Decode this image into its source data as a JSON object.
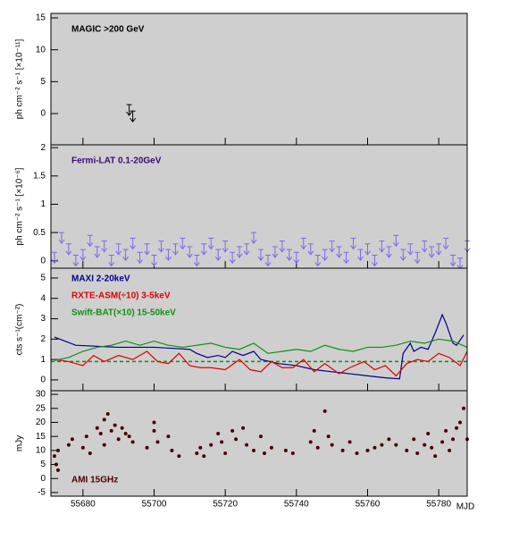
{
  "chart_data": [
    {
      "type": "scatter",
      "upper_limit": true,
      "title": "MAGIC >200 GeV",
      "title_color": "#000000",
      "ylabel": "ph cm⁻² s⁻¹ [×10⁻¹¹]",
      "color": "#000000",
      "x": [
        55693,
        55694
      ],
      "values": [
        1.4,
        0.4
      ],
      "xlim": [
        55671,
        55788
      ],
      "ylim": [
        -4.9,
        15.7
      ],
      "yticks": [
        0,
        5,
        10,
        15
      ]
    },
    {
      "type": "scatter",
      "upper_limit": true,
      "title": "Fermi-LAT 0.1-20GeV",
      "title_color": "#3a0a7a",
      "ylabel": "ph cm⁻² s⁻¹ [×10⁻⁶]",
      "color": "#7b68ee",
      "x": [
        55672,
        55674,
        55676,
        55678,
        55680,
        55682,
        55684,
        55686,
        55688,
        55690,
        55692,
        55694,
        55696,
        55698,
        55700,
        55702,
        55704,
        55706,
        55708,
        55710,
        55712,
        55714,
        55716,
        55718,
        55720,
        55722,
        55724,
        55726,
        55728,
        55730,
        55732,
        55734,
        55736,
        55738,
        55740,
        55742,
        55744,
        55746,
        55748,
        55750,
        55752,
        55754,
        55756,
        55758,
        55760,
        55762,
        55764,
        55766,
        55768,
        55770,
        55772,
        55774,
        55776,
        55778,
        55780,
        55782,
        55784,
        55786,
        55788
      ],
      "values": [
        0.15,
        0.5,
        0.3,
        0.1,
        0.2,
        0.45,
        0.25,
        0.35,
        0.1,
        0.3,
        0.2,
        0.4,
        0.15,
        0.3,
        0.1,
        0.35,
        0.2,
        0.3,
        0.4,
        0.25,
        0.1,
        0.3,
        0.4,
        0.2,
        0.35,
        0.15,
        0.25,
        0.3,
        0.5,
        0.2,
        0.1,
        0.25,
        0.35,
        0.2,
        0.15,
        0.4,
        0.3,
        0.1,
        0.2,
        0.35,
        0.25,
        0.15,
        0.4,
        0.2,
        0.3,
        0.1,
        0.35,
        0.25,
        0.45,
        0.2,
        0.3,
        0.15,
        0.35,
        0.25,
        0.3,
        0.4,
        0.1,
        0.05,
        0.35
      ],
      "xlim": [
        55671,
        55788
      ],
      "ylim": [
        -0.13,
        2.05
      ],
      "yticks": [
        0,
        0.5,
        1,
        1.5,
        2
      ]
    },
    {
      "type": "line",
      "ylabel": "cts s⁻¹(cm⁻²)",
      "hline": 0.9,
      "hline_color": "#109010",
      "series": [
        {
          "name": "MAXI 2-20keV",
          "color": "#00008b",
          "x": [
            55672,
            55678,
            55690,
            55700,
            55705,
            55710,
            55712,
            55715,
            55718,
            55720,
            55722,
            55725,
            55728,
            55730,
            55735,
            55740,
            55745,
            55750,
            55755,
            55760,
            55765,
            55769,
            55770,
            55772,
            55773,
            55775,
            55777,
            55779,
            55781,
            55782,
            55784,
            55785,
            55787
          ],
          "values": [
            2.1,
            1.7,
            1.6,
            1.6,
            1.55,
            1.5,
            1.3,
            1.1,
            1.2,
            1.1,
            1.4,
            1.2,
            1.4,
            1.0,
            0.8,
            0.7,
            0.5,
            0.4,
            0.3,
            0.2,
            0.1,
            0.05,
            1.3,
            1.8,
            1.4,
            1.6,
            1.5,
            2.3,
            3.2,
            2.8,
            1.8,
            1.7,
            2.2
          ]
        },
        {
          "name": "RXTE-ASM(÷10) 3-5keV",
          "color": "#e00000",
          "x": [
            55672,
            55676,
            55680,
            55683,
            55686,
            55690,
            55694,
            55698,
            55701,
            55704,
            55707,
            55710,
            55713,
            55716,
            55720,
            55724,
            55727,
            55730,
            55733,
            55736,
            55739,
            55742,
            55745,
            55748,
            55752,
            55755,
            55759,
            55762,
            55765,
            55768,
            55771,
            55774,
            55777,
            55780,
            55783,
            55786,
            55788
          ],
          "values": [
            1.0,
            0.9,
            0.7,
            1.2,
            0.9,
            1.2,
            1.0,
            1.4,
            0.9,
            0.8,
            1.3,
            0.7,
            0.6,
            0.6,
            0.5,
            1.0,
            0.5,
            0.4,
            0.9,
            0.6,
            0.6,
            1.0,
            0.4,
            0.8,
            0.3,
            0.6,
            0.9,
            0.5,
            0.7,
            0.2,
            0.8,
            1.0,
            0.9,
            1.3,
            1.1,
            0.7,
            1.4
          ]
        },
        {
          "name": "Swift-BAT(×10) 15-50keV",
          "color": "#109010",
          "x": [
            55672,
            55676,
            55680,
            55684,
            55688,
            55692,
            55696,
            55700,
            55704,
            55708,
            55712,
            55716,
            55720,
            55724,
            55728,
            55732,
            55736,
            55740,
            55744,
            55748,
            55752,
            55756,
            55760,
            55764,
            55768,
            55772,
            55776,
            55780,
            55784,
            55788
          ],
          "values": [
            0.95,
            1.1,
            1.4,
            1.6,
            1.7,
            1.9,
            1.7,
            1.9,
            1.7,
            1.6,
            1.7,
            1.8,
            1.6,
            1.5,
            1.8,
            1.3,
            1.4,
            1.5,
            1.4,
            1.7,
            1.5,
            1.4,
            1.6,
            1.6,
            1.7,
            1.9,
            1.8,
            2.0,
            1.9,
            1.6
          ]
        }
      ],
      "xlim": [
        55671,
        55788
      ],
      "ylim": [
        -0.53,
        5.48
      ],
      "yticks": [
        0,
        1,
        2,
        3,
        4,
        5
      ]
    },
    {
      "type": "scatter",
      "title": "AMI 15GHz",
      "title_color": "#4a0000",
      "ylabel": "mJy",
      "xlabel": "MJD",
      "color": "#4a0000",
      "x": [
        55672,
        55672.5,
        55673,
        55673,
        55676,
        55677,
        55680,
        55681,
        55682,
        55684,
        55685,
        55686,
        55686,
        55687,
        55688,
        55689,
        55690,
        55691,
        55692,
        55693,
        55694,
        55698,
        55700,
        55700,
        55701,
        55704,
        55705,
        55707,
        55712,
        55713,
        55714,
        55716,
        55718,
        55719,
        55720,
        55722,
        55723,
        55725,
        55726,
        55728,
        55730,
        55731,
        55733,
        55737,
        55739,
        55744,
        55745,
        55746,
        55748,
        55749,
        55750,
        55753,
        55755,
        55757,
        55760,
        55762,
        55764,
        55766,
        55768,
        55771,
        55773,
        55774,
        55776,
        55777,
        55778,
        55779,
        55781,
        55782,
        55783,
        55784,
        55785,
        55786,
        55787,
        55788
      ],
      "values": [
        8,
        5,
        10,
        3,
        12,
        14,
        11,
        15,
        9,
        18,
        16,
        21,
        12,
        23,
        17,
        19,
        14,
        18,
        16,
        15,
        13,
        11,
        20,
        17,
        13,
        15,
        10,
        8,
        9,
        11,
        8,
        12,
        16,
        13,
        9,
        17,
        14,
        18,
        12,
        10,
        15,
        9,
        11,
        10,
        9,
        13,
        17,
        11,
        24,
        15,
        12,
        10,
        13,
        9,
        10,
        11,
        12,
        14,
        12,
        10,
        14,
        9,
        12,
        16,
        11,
        8,
        13,
        17,
        10,
        14,
        18,
        20,
        25,
        14
      ],
      "xlim": [
        55671,
        55788
      ],
      "ylim": [
        -6.3,
        31.3
      ],
      "yticks": [
        -5,
        0,
        5,
        10,
        15,
        20,
        25,
        30
      ],
      "xticks": [
        55680,
        55700,
        55720,
        55740,
        55760,
        55780
      ]
    }
  ]
}
